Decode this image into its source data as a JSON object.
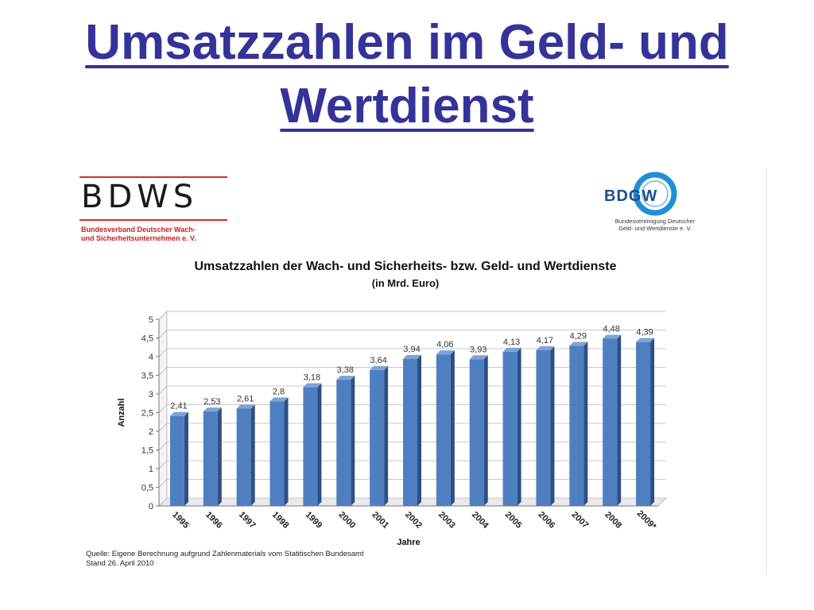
{
  "slide": {
    "title_line1": "Umsatzzahlen im Geld- und",
    "title_line2": "Wertdienst"
  },
  "logos": {
    "left_word": "BDWS",
    "left_sub_line1": "Bundesverband Deutscher Wach-",
    "left_sub_line2": "und Sicherheitsunternehmen e. V.",
    "left_color": "#d62b2b",
    "right_word": "BDGW",
    "right_sub_line1": "Bundesvereinigung Deutscher",
    "right_sub_line2": "Geld- und Wertdienste e. V.",
    "right_color": "#1f8fd6"
  },
  "note": {
    "source": "Quelle: Eigene Berechnung aufgrund Zahlenmaterials vom Statitischen Bundesamt",
    "date": "Stand 26. April 2010"
  },
  "chart_data": {
    "type": "bar",
    "title": "Umsatzzahlen der Wach- und Sicherheits- bzw. Geld- und Wertdienste",
    "subtitle": "(in Mrd. Euro)",
    "xlabel": "Jahre",
    "ylabel": "Anzahl",
    "categories": [
      "1995",
      "1996",
      "1997",
      "1998",
      "1999",
      "2000",
      "2001",
      "2002",
      "2003",
      "2004",
      "2005",
      "2006",
      "2007",
      "2008",
      "2009*"
    ],
    "values": [
      2.41,
      2.53,
      2.61,
      2.8,
      3.18,
      3.38,
      3.64,
      3.94,
      4.06,
      3.93,
      4.13,
      4.17,
      4.29,
      4.48,
      4.39
    ],
    "data_labels": [
      "2,41",
      "2,53",
      "2,61",
      "2,8",
      "3,18",
      "3,38",
      "3,64",
      "3,94",
      "4,06",
      "3,93",
      "4,13",
      "4,17",
      "4,29",
      "4,48",
      "4,39"
    ],
    "yticks": [
      0,
      0.5,
      1,
      1.5,
      2,
      2.5,
      3,
      3.5,
      4,
      4.5,
      5
    ],
    "ytick_labels": [
      "0",
      "0,5",
      "1",
      "1,5",
      "2",
      "2,5",
      "3",
      "3,5",
      "4",
      "4,5",
      "5"
    ],
    "ylim": [
      0,
      5
    ],
    "grid": true,
    "legend": "none",
    "bar_color": "#4f7fc1",
    "bar_side_color": "#2d4f86",
    "bar_top_color": "#7fa3d6"
  }
}
